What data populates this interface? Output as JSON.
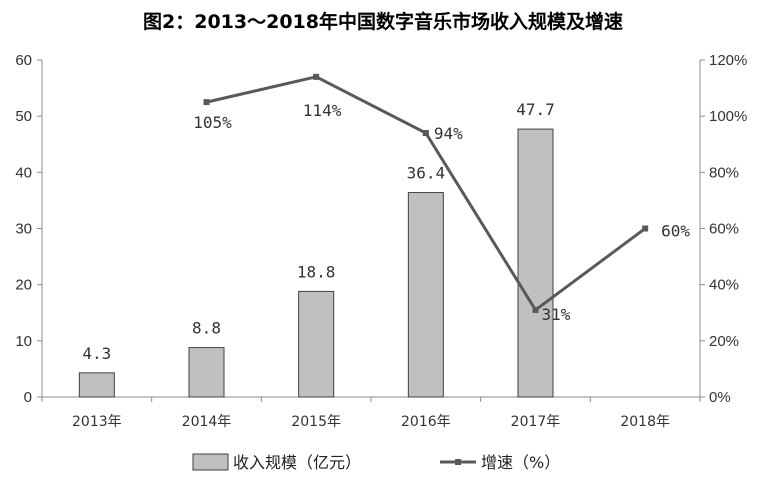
{
  "chart_data": {
    "type": "bar",
    "title": "图2：2013～2018年中国数字音乐市场收入规模及增速",
    "categories": [
      "2013年",
      "2014年",
      "2015年",
      "2016年",
      "2017年",
      "2018年"
    ],
    "series": [
      {
        "name": "收入规模（亿元）",
        "type": "bar",
        "axis": "left",
        "color": "#c0c0c0",
        "values": [
          4.3,
          8.8,
          18.8,
          36.4,
          47.7,
          null
        ],
        "labels": [
          "4.3",
          "8.8",
          "18.8",
          "36.4",
          "47.7",
          ""
        ]
      },
      {
        "name": "增速（%）",
        "type": "line",
        "axis": "right",
        "color": "#595959",
        "values": [
          null,
          105,
          114,
          94,
          31,
          60
        ],
        "labels": [
          "",
          "105%",
          "114%",
          "94%",
          "31%",
          "60%"
        ]
      }
    ],
    "ylim": [
      0,
      60
    ],
    "yticks": [
      "0",
      "10",
      "20",
      "30",
      "40",
      "50",
      "60"
    ],
    "y2lim": [
      0,
      120
    ],
    "y2ticks": [
      "0%",
      "20%",
      "40%",
      "60%",
      "80%",
      "100%",
      "120%"
    ],
    "grid": false,
    "legend": "bottom"
  }
}
